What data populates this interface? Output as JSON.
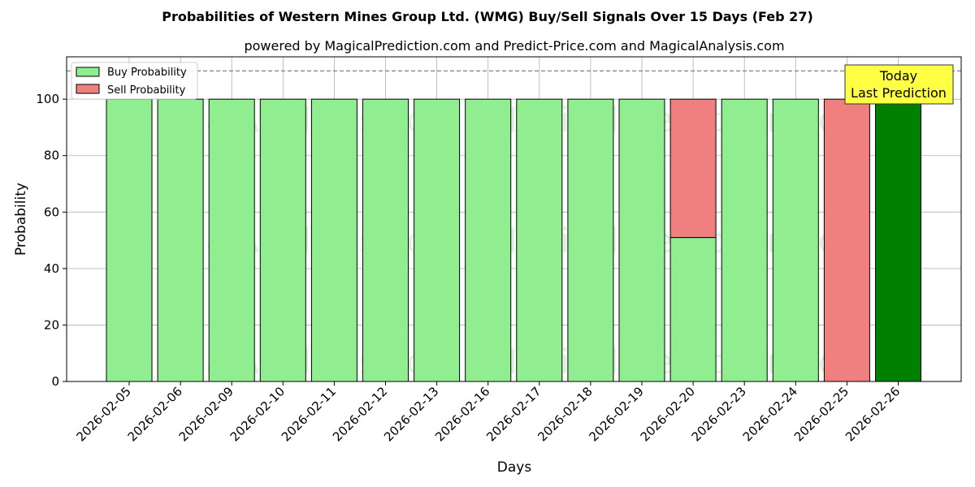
{
  "chart_data": {
    "type": "bar",
    "title": "Probabilities of Western Mines Group Ltd. (WMG) Buy/Sell Signals Over 15 Days (Feb 27)",
    "subtitle": "powered by MagicalPrediction.com and Predict-Price.com and MagicalAnalysis.com",
    "xlabel": "Days",
    "ylabel": "Probability",
    "ylim": [
      0,
      115
    ],
    "yticks": [
      0,
      20,
      40,
      60,
      80,
      100
    ],
    "threshold_line": 110,
    "grid": true,
    "legend_position": "top-left",
    "categories": [
      "2026-02-05",
      "2026-02-06",
      "2026-02-09",
      "2026-02-10",
      "2026-02-11",
      "2026-02-12",
      "2026-02-13",
      "2026-02-16",
      "2026-02-17",
      "2026-02-18",
      "2026-02-19",
      "2026-02-20",
      "2026-02-23",
      "2026-02-24",
      "2026-02-25",
      "2026-02-26"
    ],
    "series": [
      {
        "name": "Buy Probability",
        "color": "#90ee90",
        "values": [
          100,
          100,
          100,
          100,
          100,
          100,
          100,
          100,
          100,
          100,
          100,
          51,
          100,
          100,
          0,
          100
        ]
      },
      {
        "name": "Sell Probability",
        "color": "#f08080",
        "values": [
          0,
          0,
          0,
          0,
          0,
          0,
          0,
          0,
          0,
          0,
          0,
          49,
          0,
          0,
          100,
          0
        ]
      }
    ],
    "today_bar_color": "#008000",
    "today_index": 15,
    "annotation": {
      "line1": "Today",
      "line2": "Last Prediction"
    },
    "watermarks": [
      "MagicalAnalysis.com",
      "MagicalPrediction.com"
    ]
  }
}
